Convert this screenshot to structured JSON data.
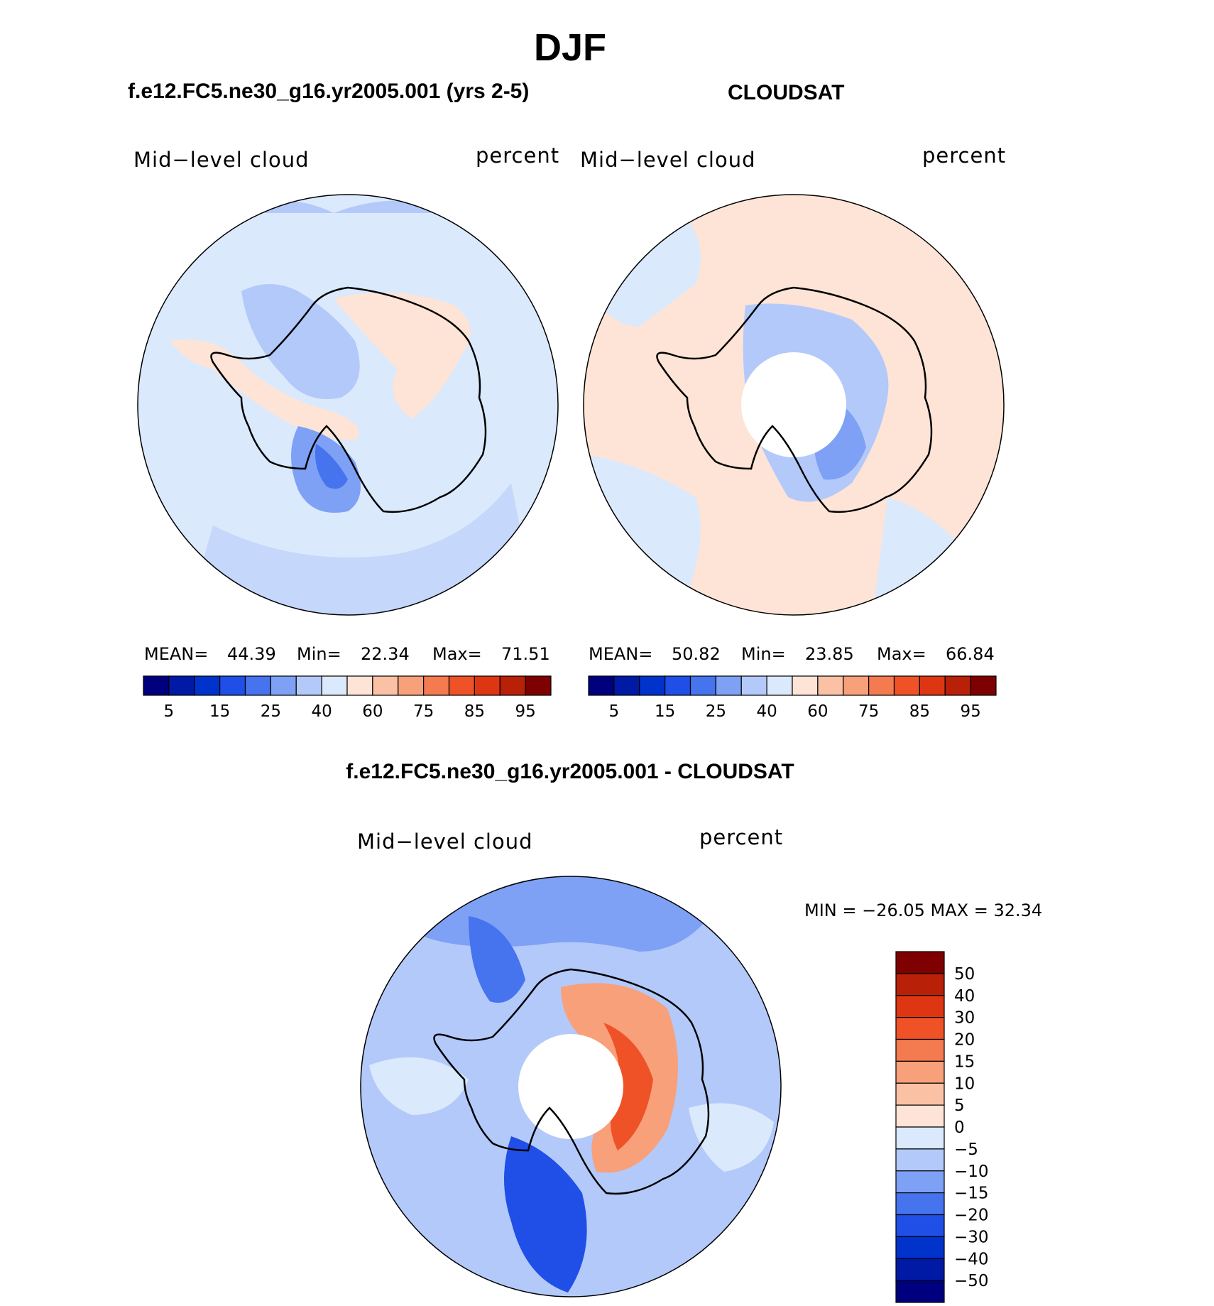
{
  "figure": {
    "title": "DJF"
  },
  "chart_data": [
    {
      "type": "heatmap",
      "projection": "south polar stereographic",
      "title": "f.e12.FC5.ne30_g16.yr2005.001 (yrs 2-5)",
      "left_label": "Mid−level cloud",
      "right_label": "percent",
      "stats": {
        "mean_label": "MEAN=",
        "mean": "44.39",
        "min_label": "Min=",
        "min": "22.34",
        "max_label": "Max=",
        "max": "71.51"
      },
      "colorbar": {
        "orientation": "horizontal",
        "tick_labels": [
          "5",
          "15",
          "25",
          "40",
          "60",
          "75",
          "85",
          "95"
        ],
        "colors": [
          "#00007f",
          "#001aa6",
          "#0033cc",
          "#1f4fe6",
          "#4673ee",
          "#7ea1f5",
          "#b3c9fa",
          "#dbe9fc",
          "#fde4d6",
          "#fbc1a5",
          "#f8a07a",
          "#f47a4f",
          "#ef5227",
          "#de3512",
          "#b92008",
          "#7f0000"
        ]
      },
      "background_color": "#dbe9fc",
      "polar_data_gap": false
    },
    {
      "type": "heatmap",
      "projection": "south polar stereographic",
      "title": "CLOUDSAT",
      "left_label": "Mid−level cloud",
      "right_label": "percent",
      "stats": {
        "mean_label": "MEAN=",
        "mean": "50.82",
        "min_label": "Min=",
        "min": "23.85",
        "max_label": "Max=",
        "max": "66.84"
      },
      "colorbar": {
        "orientation": "horizontal",
        "tick_labels": [
          "5",
          "15",
          "25",
          "40",
          "60",
          "75",
          "85",
          "95"
        ],
        "colors": [
          "#00007f",
          "#001aa6",
          "#0033cc",
          "#1f4fe6",
          "#4673ee",
          "#7ea1f5",
          "#b3c9fa",
          "#dbe9fc",
          "#fde4d6",
          "#fbc1a5",
          "#f8a07a",
          "#f47a4f",
          "#ef5227",
          "#de3512",
          "#b92008",
          "#7f0000"
        ]
      },
      "background_color": "#fde4d6",
      "polar_data_gap": true
    },
    {
      "type": "heatmap",
      "projection": "south polar stereographic",
      "title": "f.e12.FC5.ne30_g16.yr2005.001 - CLOUDSAT",
      "left_label": "Mid−level cloud",
      "right_label": "percent",
      "stats": {
        "text": "MIN = −26.05 MAX =   32.34"
      },
      "colorbar": {
        "orientation": "vertical",
        "tick_labels": [
          "50",
          "40",
          "30",
          "20",
          "15",
          "10",
          "5",
          "0",
          "−5",
          "−10",
          "−15",
          "−20",
          "−30",
          "−40",
          "−50"
        ],
        "colors": [
          "#7f0000",
          "#b92008",
          "#de3512",
          "#ef5227",
          "#f47a4f",
          "#f8a07a",
          "#fbc1a5",
          "#fde4d6",
          "#dbe9fc",
          "#b3c9fa",
          "#7ea1f5",
          "#4673ee",
          "#1f4fe6",
          "#0033cc",
          "#001aa6",
          "#00007f"
        ]
      },
      "background_color": "#b3c9fa",
      "polar_data_gap": true
    }
  ]
}
